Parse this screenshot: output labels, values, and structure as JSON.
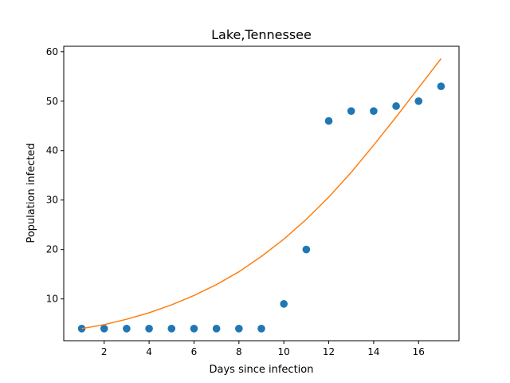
{
  "chart_data": {
    "type": "scatter",
    "title": "Lake,Tennessee",
    "xlabel": "Days since infection",
    "ylabel": "Population infected",
    "xlim": [
      0.2,
      17.8
    ],
    "ylim": [
      1.55,
      61.1
    ],
    "x_ticks": [
      2,
      4,
      6,
      8,
      10,
      12,
      14,
      16
    ],
    "y_ticks": [
      10,
      20,
      30,
      40,
      50,
      60
    ],
    "grid": false,
    "series": [
      {
        "type": "scatter",
        "color": "#1f77b4",
        "x": [
          1,
          2,
          3,
          4,
          5,
          6,
          7,
          8,
          9,
          10,
          11,
          12,
          13,
          14,
          15,
          16,
          17
        ],
        "y": [
          4,
          4,
          4,
          4,
          4,
          4,
          4,
          4,
          4,
          9,
          20,
          46,
          48,
          48,
          49,
          50,
          53
        ]
      },
      {
        "type": "line",
        "color": "#ff7f0e",
        "x": [
          1,
          2,
          3,
          4,
          5,
          6,
          7,
          8,
          9,
          10,
          11,
          12,
          13,
          14,
          15,
          16,
          17
        ],
        "y": [
          4.0,
          4.8,
          5.9,
          7.2,
          8.8,
          10.7,
          12.9,
          15.5,
          18.6,
          22.1,
          26.1,
          30.6,
          35.6,
          41.1,
          46.8,
          52.7,
          58.6
        ]
      }
    ]
  }
}
